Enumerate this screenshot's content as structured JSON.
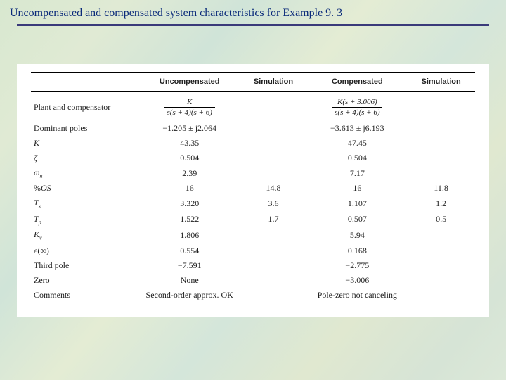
{
  "title": "Uncompensated and compensated system characteristics for Example 9. 3",
  "colors": {
    "title_color": "#0a2a7a",
    "underline_color": "#3a3a7a",
    "background_gradient": [
      "#d8e8d0",
      "#e0ead4",
      "#d0e4d8",
      "#e4ecd4",
      "#d4e6da",
      "#e0e8d0",
      "#d6e4d6",
      "#dce8d8"
    ],
    "table_bg": "#ffffff",
    "text_color": "#222222",
    "rule_color": "#000000"
  },
  "typography": {
    "title_fontsize": 16,
    "header_fontsize": 11,
    "body_fontsize": 12,
    "title_family": "Georgia",
    "header_family": "Arial",
    "body_family": "Georgia"
  },
  "table": {
    "type": "table",
    "columns": [
      "",
      "Uncompensated",
      "Simulation",
      "Compensated",
      "Simulation"
    ],
    "col_widths_pct": [
      24,
      22,
      15,
      22,
      15
    ],
    "rows": [
      {
        "label": "Plant and compensator",
        "uncomp": {
          "frac": {
            "num": "K",
            "den": "s(s + 4)(s + 6)"
          }
        },
        "sim1": "",
        "comp": {
          "frac": {
            "num": "K(s + 3.006)",
            "den": "s(s + 4)(s + 6)"
          }
        },
        "sim2": ""
      },
      {
        "label": "Dominant poles",
        "uncomp": "−1.205 ± j2.064",
        "sim1": "",
        "comp": "−3.613 ± j6.193",
        "sim2": ""
      },
      {
        "label_html": "<span class=\"ital\">K</span>",
        "uncomp": "43.35",
        "sim1": "",
        "comp": "47.45",
        "sim2": ""
      },
      {
        "label_html": "<span class=\"ital\">ζ</span>",
        "uncomp": "0.504",
        "sim1": "",
        "comp": "0.504",
        "sim2": ""
      },
      {
        "label_html": "<span class=\"ital\">ω</span><span class=\"sub\">n</span>",
        "uncomp": "2.39",
        "sim1": "",
        "comp": "7.17",
        "sim2": ""
      },
      {
        "label_html": "%<span class=\"ital\">OS</span>",
        "uncomp": "16",
        "sim1": "14.8",
        "comp": "16",
        "sim2": "11.8"
      },
      {
        "label_html": "<span class=\"ital\">T</span><span class=\"sub\">s</span>",
        "uncomp": "3.320",
        "sim1": "3.6",
        "comp": "1.107",
        "sim2": "1.2"
      },
      {
        "label_html": "<span class=\"ital\">T</span><span class=\"sub\">p</span>",
        "uncomp": "1.522",
        "sim1": "1.7",
        "comp": "0.507",
        "sim2": "0.5"
      },
      {
        "label_html": "<span class=\"ital\">K</span><span class=\"sub\">v</span>",
        "uncomp": "1.806",
        "sim1": "",
        "comp": "5.94",
        "sim2": ""
      },
      {
        "label_html": "<span class=\"ital\">e</span>(∞)",
        "uncomp": "0.554",
        "sim1": "",
        "comp": "0.168",
        "sim2": ""
      },
      {
        "label": "Third pole",
        "uncomp": "−7.591",
        "sim1": "",
        "comp": "−2.775",
        "sim2": ""
      },
      {
        "label": "Zero",
        "uncomp": "None",
        "sim1": "",
        "comp": "−3.006",
        "sim2": ""
      },
      {
        "label": "Comments",
        "uncomp": "Second-order approx. OK",
        "sim1": "",
        "comp": "Pole-zero not canceling",
        "sim2": ""
      }
    ]
  }
}
